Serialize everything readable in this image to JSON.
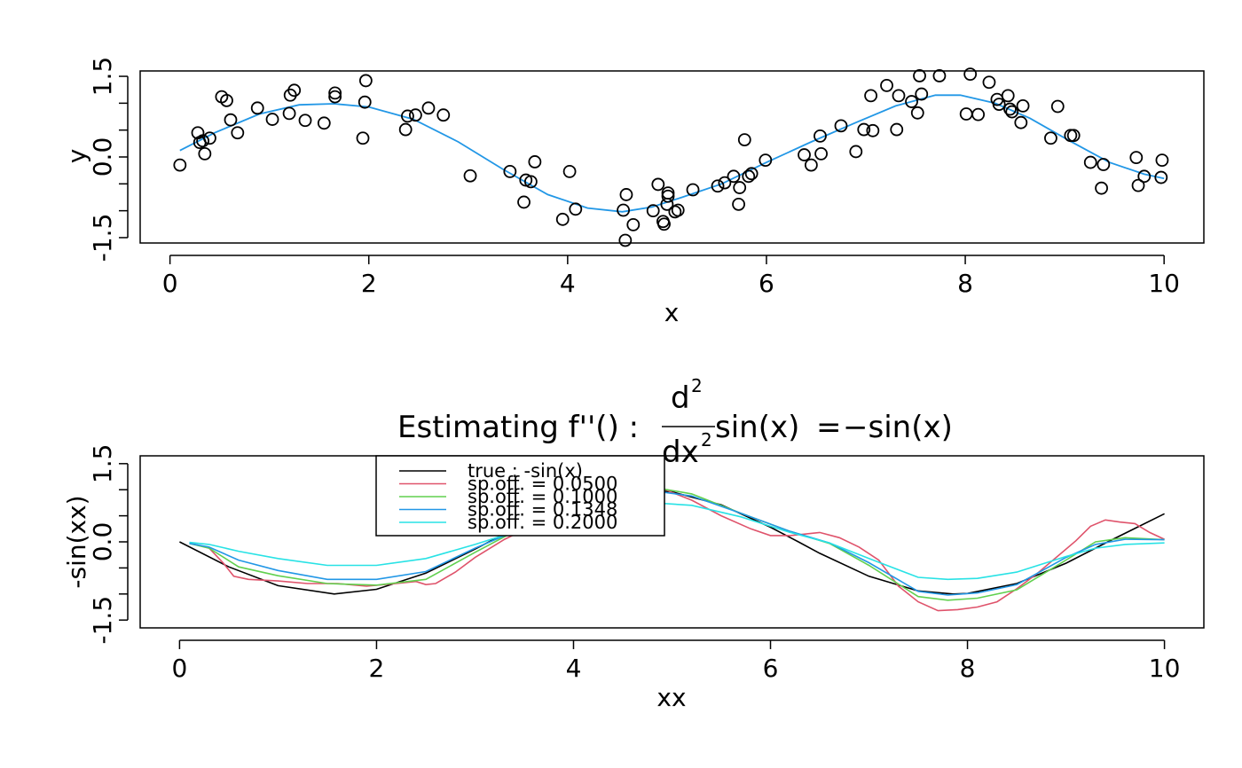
{
  "chart_data": [
    {
      "type": "scatter",
      "xlabel": "x",
      "ylabel": "y",
      "xlim": [
        -0.3,
        10.4
      ],
      "ylim": [
        -1.6,
        1.6
      ],
      "xticks": [
        0,
        2,
        4,
        6,
        8,
        10
      ],
      "yticks": [
        -1.5,
        0.0,
        1.5
      ],
      "ytick_labels": [
        "-1.5",
        "0.0",
        "1.5"
      ],
      "grid": false,
      "point_color": "#000000",
      "smooth_color": "#2297E6",
      "points": [
        [
          0.1,
          -0.15
        ],
        [
          0.28,
          0.45
        ],
        [
          0.3,
          0.27
        ],
        [
          0.33,
          0.3
        ],
        [
          0.35,
          0.06
        ],
        [
          0.4,
          0.35
        ],
        [
          0.52,
          1.12
        ],
        [
          0.57,
          1.05
        ],
        [
          0.61,
          0.69
        ],
        [
          0.68,
          0.45
        ],
        [
          0.88,
          0.91
        ],
        [
          1.03,
          0.7
        ],
        [
          1.2,
          0.81
        ],
        [
          1.21,
          1.15
        ],
        [
          1.25,
          1.24
        ],
        [
          1.36,
          0.68
        ],
        [
          1.55,
          0.63
        ],
        [
          1.66,
          1.19
        ],
        [
          1.66,
          1.12
        ],
        [
          1.94,
          0.35
        ],
        [
          1.96,
          1.02
        ],
        [
          1.97,
          1.42
        ],
        [
          2.37,
          0.51
        ],
        [
          2.39,
          0.76
        ],
        [
          2.47,
          0.78
        ],
        [
          2.6,
          0.91
        ],
        [
          2.75,
          0.78
        ],
        [
          3.02,
          -0.35
        ],
        [
          3.42,
          -0.27
        ],
        [
          3.56,
          -0.84
        ],
        [
          3.58,
          -0.43
        ],
        [
          3.63,
          -0.46
        ],
        [
          3.67,
          -0.09
        ],
        [
          3.95,
          -1.16
        ],
        [
          4.02,
          -0.27
        ],
        [
          4.08,
          -0.97
        ],
        [
          4.56,
          -0.99
        ],
        [
          4.58,
          -1.55
        ],
        [
          4.59,
          -0.7
        ],
        [
          4.66,
          -1.26
        ],
        [
          4.86,
          -1.0
        ],
        [
          4.91,
          -0.51
        ],
        [
          4.96,
          -1.2
        ],
        [
          4.97,
          -1.25
        ],
        [
          5.0,
          -0.88
        ],
        [
          5.01,
          -0.73
        ],
        [
          5.01,
          -0.67
        ],
        [
          5.08,
          -1.02
        ],
        [
          5.11,
          -0.99
        ],
        [
          5.26,
          -0.61
        ],
        [
          5.51,
          -0.54
        ],
        [
          5.58,
          -0.48
        ],
        [
          5.67,
          -0.36
        ],
        [
          5.72,
          -0.88
        ],
        [
          5.73,
          -0.57
        ],
        [
          5.78,
          0.32
        ],
        [
          5.82,
          -0.36
        ],
        [
          5.85,
          -0.31
        ],
        [
          5.99,
          -0.06
        ],
        [
          6.38,
          0.04
        ],
        [
          6.45,
          -0.15
        ],
        [
          6.54,
          0.39
        ],
        [
          6.55,
          0.06
        ],
        [
          6.75,
          0.58
        ],
        [
          6.9,
          0.1
        ],
        [
          6.98,
          0.51
        ],
        [
          7.05,
          1.14
        ],
        [
          7.07,
          0.49
        ],
        [
          7.21,
          1.33
        ],
        [
          7.33,
          1.14
        ],
        [
          7.31,
          0.51
        ],
        [
          7.46,
          1.03
        ],
        [
          7.52,
          0.82
        ],
        [
          7.54,
          1.51
        ],
        [
          7.56,
          1.17
        ],
        [
          7.74,
          1.51
        ],
        [
          8.01,
          0.8
        ],
        [
          8.05,
          1.54
        ],
        [
          8.13,
          0.79
        ],
        [
          8.24,
          1.39
        ],
        [
          8.32,
          1.07
        ],
        [
          8.34,
          0.98
        ],
        [
          8.43,
          1.14
        ],
        [
          8.45,
          0.89
        ],
        [
          8.47,
          0.84
        ],
        [
          8.56,
          0.64
        ],
        [
          8.58,
          0.95
        ],
        [
          8.86,
          0.35
        ],
        [
          8.93,
          0.94
        ],
        [
          9.06,
          0.4
        ],
        [
          9.09,
          0.4
        ],
        [
          9.26,
          -0.1
        ],
        [
          9.37,
          -0.58
        ],
        [
          9.39,
          -0.14
        ],
        [
          9.72,
          -0.01
        ],
        [
          9.74,
          -0.53
        ],
        [
          9.8,
          -0.36
        ],
        [
          9.97,
          -0.38
        ],
        [
          9.98,
          -0.06
        ]
      ],
      "smooth": {
        "x": [
          0.1,
          0.45,
          0.9,
          1.3,
          1.65,
          2.0,
          2.45,
          2.9,
          3.35,
          3.8,
          4.2,
          4.55,
          4.85,
          5.15,
          5.55,
          6.0,
          6.45,
          6.9,
          7.3,
          7.7,
          7.95,
          8.3,
          8.65,
          9.05,
          9.45,
          9.8,
          10.0
        ],
        "y": [
          0.12,
          0.45,
          0.8,
          0.97,
          0.99,
          0.93,
          0.7,
          0.28,
          -0.23,
          -0.7,
          -0.95,
          -1.02,
          -0.93,
          -0.75,
          -0.5,
          -0.1,
          0.28,
          0.64,
          0.95,
          1.15,
          1.15,
          1.0,
          0.72,
          0.3,
          -0.1,
          -0.32,
          -0.4
        ]
      }
    },
    {
      "type": "line",
      "title_prefix": "Estimating f''() :",
      "title_math": {
        "numerator": "d",
        "numerator_exp": "2",
        "denominator": "dx",
        "denominator_exp": "2",
        "function": "sin(x)",
        "equals": "=",
        "rhs": "−sin(x)"
      },
      "xlabel": "xx",
      "ylabel": "-sin(xx)",
      "xlim": [
        -0.4,
        10.4
      ],
      "ylim": [
        -1.65,
        1.65
      ],
      "xticks": [
        0,
        2,
        4,
        6,
        8,
        10
      ],
      "yticks": [
        -1.5,
        0.0,
        1.5
      ],
      "ytick_labels": [
        "-1.5",
        "0.0",
        "1.5"
      ],
      "grid": false,
      "legend_placement": "top-left",
      "series": [
        {
          "name": "true :  -sin(x)",
          "color": "#000000",
          "x": [
            0,
            0.5,
            1.0,
            1.5708,
            2.0,
            2.5,
            3.0,
            3.1416,
            3.5,
            4.0,
            4.5,
            4.7124,
            5.0,
            5.5,
            6.0,
            6.2832,
            6.5,
            7.0,
            7.5,
            7.854,
            8.0,
            8.5,
            9.0,
            9.4248,
            10.0
          ],
          "values": [
            0,
            -0.48,
            -0.84,
            -1.0,
            -0.91,
            -0.6,
            -0.14,
            0,
            0.35,
            0.76,
            0.98,
            1.0,
            0.96,
            0.71,
            0.28,
            0,
            -0.22,
            -0.66,
            -0.94,
            -1.0,
            -0.99,
            -0.8,
            -0.41,
            0,
            0.54
          ]
        },
        {
          "name": "sp.off. =  0.0500",
          "color": "#DF536B",
          "x": [
            0.1,
            0.3,
            0.45,
            0.55,
            0.7,
            1.0,
            1.3,
            1.6,
            1.9,
            2.2,
            2.4,
            2.5,
            2.6,
            2.8,
            3.0,
            3.3,
            3.6,
            4.0,
            4.3,
            4.55,
            4.75,
            5.0,
            5.2,
            5.5,
            5.8,
            6.0,
            6.2,
            6.5,
            6.7,
            6.9,
            7.1,
            7.3,
            7.5,
            7.7,
            7.9,
            8.1,
            8.3,
            8.5,
            8.7,
            8.9,
            9.1,
            9.25,
            9.4,
            9.55,
            9.7,
            9.85,
            10.0
          ],
          "values": [
            -0.02,
            -0.12,
            -0.42,
            -0.66,
            -0.72,
            -0.75,
            -0.8,
            -0.8,
            -0.85,
            -0.8,
            -0.76,
            -0.82,
            -0.8,
            -0.58,
            -0.3,
            0.05,
            0.32,
            0.62,
            0.92,
            1.22,
            1.15,
            0.95,
            0.8,
            0.5,
            0.25,
            0.12,
            0.12,
            0.18,
            0.08,
            -0.1,
            -0.35,
            -0.85,
            -1.15,
            -1.32,
            -1.3,
            -1.25,
            -1.15,
            -0.9,
            -0.62,
            -0.3,
            0.02,
            0.3,
            0.42,
            0.38,
            0.35,
            0.18,
            0.05
          ]
        },
        {
          "name": "sp.off. =  0.1000",
          "color": "#61D04F",
          "x": [
            0.1,
            0.3,
            0.6,
            1.0,
            1.5,
            2.0,
            2.5,
            3.0,
            3.5,
            4.0,
            4.5,
            4.8,
            5.2,
            5.7,
            6.2,
            6.6,
            7.0,
            7.5,
            7.8,
            8.1,
            8.5,
            9.0,
            9.3,
            9.6,
            10.0
          ],
          "values": [
            -0.03,
            -0.12,
            -0.48,
            -0.65,
            -0.8,
            -0.83,
            -0.72,
            -0.2,
            0.3,
            0.68,
            0.98,
            1.05,
            0.92,
            0.55,
            0.2,
            -0.03,
            -0.45,
            -1.05,
            -1.12,
            -1.08,
            -0.92,
            -0.35,
            0.0,
            0.08,
            0.04
          ]
        },
        {
          "name": "sp.off. =  0.1348",
          "color": "#2297E6",
          "x": [
            0.1,
            0.3,
            0.6,
            1.0,
            1.5,
            2.0,
            2.5,
            3.0,
            3.5,
            4.0,
            4.5,
            4.8,
            5.2,
            5.7,
            6.2,
            6.6,
            7.0,
            7.5,
            7.8,
            8.1,
            8.5,
            9.0,
            9.3,
            9.6,
            10.0
          ],
          "values": [
            -0.03,
            -0.1,
            -0.35,
            -0.55,
            -0.72,
            -0.72,
            -0.57,
            -0.12,
            0.28,
            0.62,
            0.92,
            0.98,
            0.88,
            0.55,
            0.2,
            -0.02,
            -0.4,
            -0.95,
            -1.02,
            -0.98,
            -0.82,
            -0.3,
            -0.05,
            0.05,
            0.04
          ]
        },
        {
          "name": "sp.off. =  0.2000",
          "color": "#28E2E5",
          "x": [
            0.1,
            0.3,
            0.6,
            1.0,
            1.5,
            2.0,
            2.5,
            3.0,
            3.5,
            4.0,
            4.5,
            4.8,
            5.2,
            5.7,
            6.2,
            6.6,
            7.0,
            7.5,
            7.8,
            8.1,
            8.5,
            9.0,
            9.3,
            9.6,
            10.0
          ],
          "values": [
            -0.01,
            -0.05,
            -0.18,
            -0.32,
            -0.45,
            -0.45,
            -0.32,
            -0.05,
            0.25,
            0.52,
            0.72,
            0.75,
            0.7,
            0.48,
            0.18,
            -0.02,
            -0.32,
            -0.68,
            -0.72,
            -0.7,
            -0.58,
            -0.28,
            -0.12,
            -0.05,
            -0.02
          ]
        }
      ]
    }
  ]
}
